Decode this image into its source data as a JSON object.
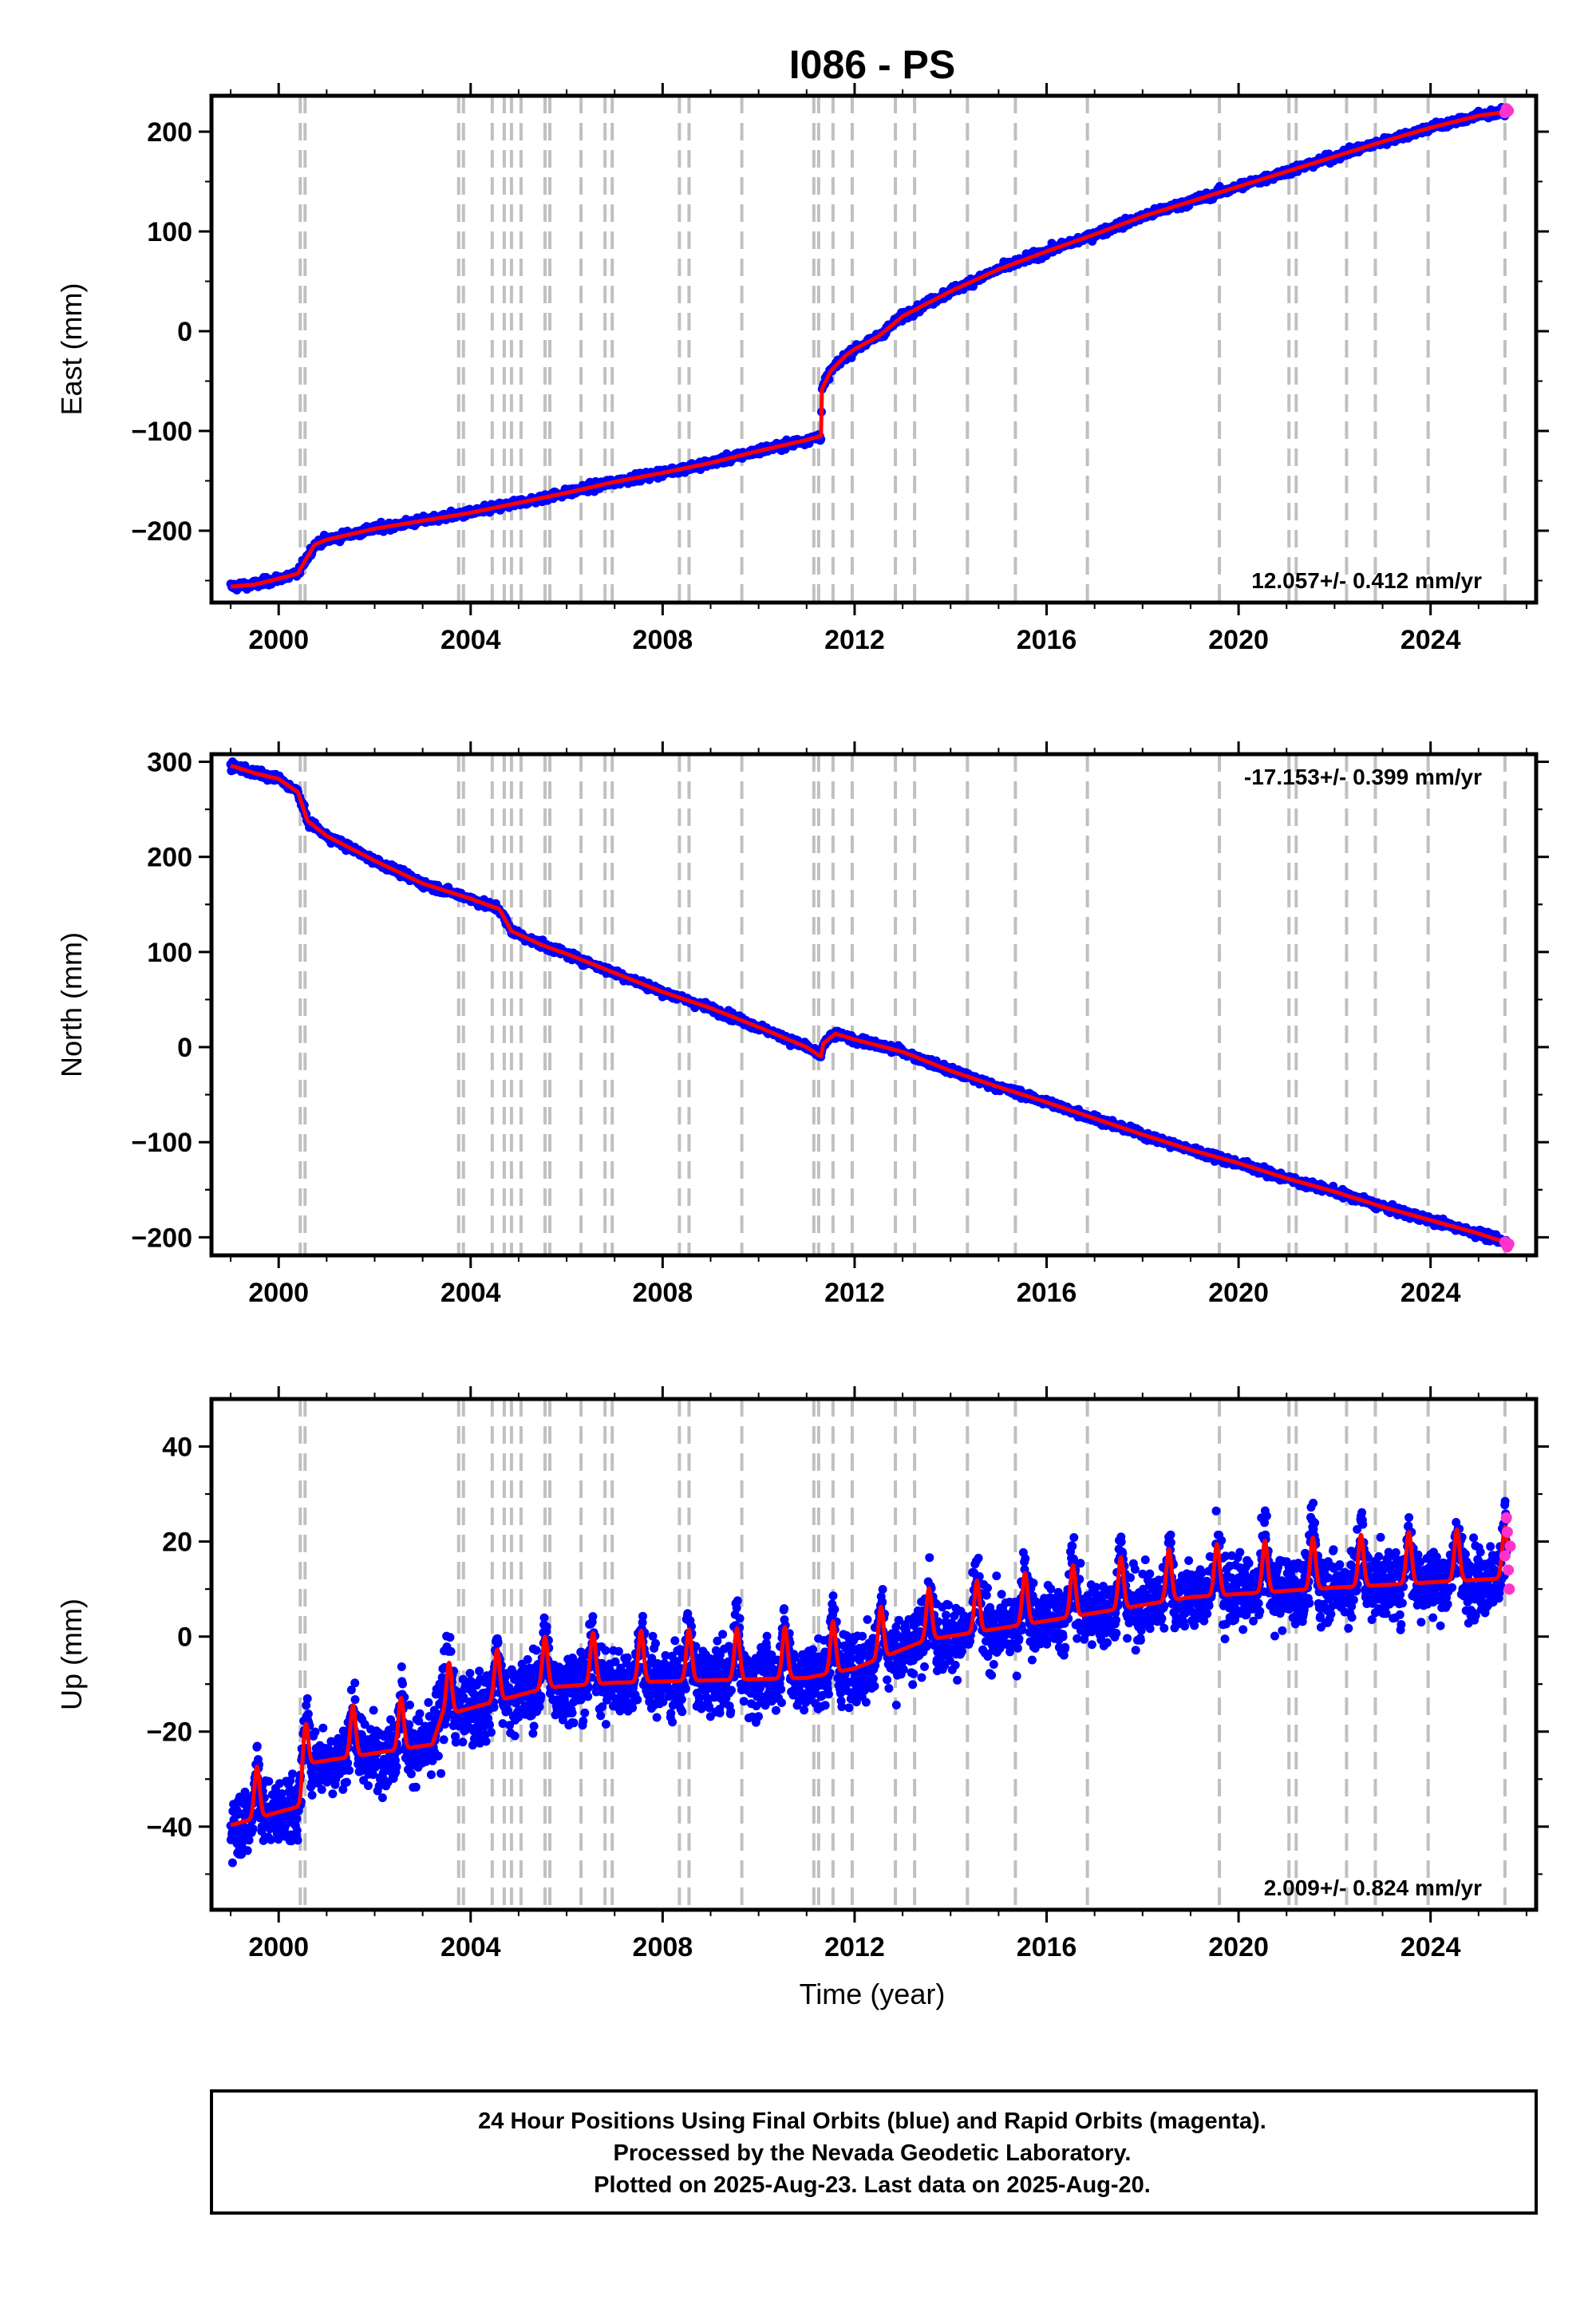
{
  "chart_data": {
    "title": "I086 - PS",
    "xlabel": "Time (year)",
    "x_ticks": [
      2000,
      2004,
      2008,
      2012,
      2016,
      2020,
      2024
    ],
    "xlim": [
      1998.6,
      2026.2
    ],
    "equipment_change_years": [
      2000.45,
      2000.55,
      2003.75,
      2003.85,
      2004.45,
      2004.7,
      2004.85,
      2005.05,
      2005.55,
      2005.65,
      2006.3,
      2006.8,
      2006.95,
      2008.35,
      2008.55,
      2009.65,
      2011.15,
      2011.25,
      2011.55,
      2011.95,
      2012.85,
      2013.25,
      2014.35,
      2015.35,
      2016.85,
      2019.6,
      2021.05,
      2021.2,
      2022.25,
      2022.85,
      2023.95,
      2025.55
    ],
    "footer_lines": [
      "24 Hour Positions Using Final Orbits (blue) and Rapid Orbits (magenta).",
      "Processed by the Nevada Geodetic Laboratory.",
      "Plotted on 2025-Aug-23. Last data on 2025-Aug-20."
    ],
    "panels": [
      {
        "type": "scatter",
        "ylabel": "East (mm)",
        "ylim": [
          -272,
          236
        ],
        "y_ticks": [
          -200,
          -100,
          0,
          100,
          200
        ],
        "y_tick_labels": [
          "−200",
          "−100",
          "0",
          "100",
          "200"
        ],
        "rate_label": "12.057+/- 0.412 mm/yr",
        "rate_position": "bottom-right",
        "final_orbits_color": "#0000ff",
        "rapid_orbits_color": "#ff33cc",
        "model_color": "#ff0000",
        "model": [
          [
            1999.0,
            -256
          ],
          [
            1999.5,
            -254
          ],
          [
            2000.0,
            -248
          ],
          [
            2000.4,
            -243
          ],
          [
            2000.55,
            -230
          ],
          [
            2000.75,
            -214
          ],
          [
            2001.0,
            -209
          ],
          [
            2002.0,
            -198
          ],
          [
            2003.0,
            -190
          ],
          [
            2004.0,
            -182
          ],
          [
            2005.0,
            -172
          ],
          [
            2006.0,
            -162
          ],
          [
            2007.0,
            -151
          ],
          [
            2008.0,
            -142
          ],
          [
            2009.0,
            -132
          ],
          [
            2010.0,
            -120
          ],
          [
            2011.0,
            -109
          ],
          [
            2011.3,
            -105
          ],
          [
            2011.32,
            -58
          ],
          [
            2011.5,
            -40
          ],
          [
            2011.8,
            -25
          ],
          [
            2012.0,
            -18
          ],
          [
            2012.5,
            -5
          ],
          [
            2013.0,
            15
          ],
          [
            2014.0,
            40
          ],
          [
            2015.0,
            62
          ],
          [
            2016.0,
            80
          ],
          [
            2017.0,
            97
          ],
          [
            2018.0,
            115
          ],
          [
            2019.0,
            130
          ],
          [
            2020.0,
            145
          ],
          [
            2021.0,
            160
          ],
          [
            2022.0,
            175
          ],
          [
            2023.0,
            190
          ],
          [
            2024.0,
            204
          ],
          [
            2025.0,
            216
          ],
          [
            2025.6,
            220
          ]
        ],
        "scatter_spread": 4,
        "rapid_points": [
          [
            2025.55,
            219
          ],
          [
            2025.58,
            223
          ],
          [
            2025.62,
            221
          ]
        ]
      },
      {
        "type": "scatter",
        "ylabel": "North (mm)",
        "ylim": [
          -219,
          308
        ],
        "y_ticks": [
          -200,
          -100,
          0,
          100,
          200,
          300
        ],
        "y_tick_labels": [
          "−200",
          "−100",
          "0",
          "100",
          "200",
          "300"
        ],
        "rate_label": "-17.153+/- 0.399 mm/yr",
        "rate_position": "top-right",
        "final_orbits_color": "#0000ff",
        "rapid_orbits_color": "#ff33cc",
        "model_color": "#ff0000",
        "model": [
          [
            1999.0,
            296
          ],
          [
            1999.5,
            288
          ],
          [
            2000.0,
            282
          ],
          [
            2000.4,
            268
          ],
          [
            2000.6,
            238
          ],
          [
            2001.0,
            222
          ],
          [
            2002.0,
            196
          ],
          [
            2003.0,
            172
          ],
          [
            2004.0,
            156
          ],
          [
            2004.6,
            145
          ],
          [
            2004.85,
            122
          ],
          [
            2005.5,
            107
          ],
          [
            2006.0,
            98
          ],
          [
            2007.0,
            78
          ],
          [
            2008.0,
            58
          ],
          [
            2009.0,
            41
          ],
          [
            2010.0,
            21
          ],
          [
            2011.0,
            0
          ],
          [
            2011.3,
            -10
          ],
          [
            2011.35,
            4
          ],
          [
            2011.6,
            14
          ],
          [
            2012.0,
            8
          ],
          [
            2013.0,
            -5
          ],
          [
            2014.0,
            -25
          ],
          [
            2015.0,
            -42
          ],
          [
            2016.0,
            -58
          ],
          [
            2017.0,
            -75
          ],
          [
            2018.0,
            -92
          ],
          [
            2019.0,
            -108
          ],
          [
            2020.0,
            -122
          ],
          [
            2021.0,
            -138
          ],
          [
            2022.0,
            -152
          ],
          [
            2023.0,
            -168
          ],
          [
            2024.0,
            -182
          ],
          [
            2025.0,
            -196
          ],
          [
            2025.6,
            -206
          ]
        ],
        "scatter_spread": 4,
        "rapid_points": [
          [
            2025.55,
            -205
          ],
          [
            2025.6,
            -210
          ],
          [
            2025.63,
            -207
          ]
        ]
      },
      {
        "type": "scatter",
        "ylabel": "Up (mm)",
        "ylim": [
          -57.5,
          50
        ],
        "y_ticks": [
          -40,
          -20,
          0,
          20,
          40
        ],
        "y_tick_labels": [
          "−40",
          "−20",
          "0",
          "20",
          "40"
        ],
        "rate_label": "2.009+/- 0.824 mm/yr",
        "rate_position": "bottom-right",
        "final_orbits_color": "#0000ff",
        "rapid_orbits_color": "#ff33cc",
        "model_color": "#ff0000",
        "seasonal_model": {
          "start": 1999.0,
          "end": 2025.6,
          "amplitude": 4.5,
          "peak_phase": 0.55,
          "trend": [
            [
              1999.0,
              -37
            ],
            [
              2000.45,
              -33
            ],
            [
              2000.6,
              -24
            ],
            [
              2003.2,
              -20
            ],
            [
              2003.4,
              -14
            ],
            [
              2005.6,
              -8
            ],
            [
              2007.0,
              -7
            ],
            [
              2011.0,
              -6
            ],
            [
              2012.0,
              -4
            ],
            [
              2013.5,
              2
            ],
            [
              2016.0,
              6
            ],
            [
              2019.0,
              11
            ],
            [
              2022.0,
              13
            ],
            [
              2025.6,
              15
            ]
          ]
        },
        "scatter_spread": 7,
        "rapid_points": [
          [
            2025.55,
            17
          ],
          [
            2025.58,
            25
          ],
          [
            2025.6,
            22
          ],
          [
            2025.62,
            14
          ],
          [
            2025.64,
            10
          ],
          [
            2025.66,
            19
          ]
        ]
      }
    ]
  }
}
